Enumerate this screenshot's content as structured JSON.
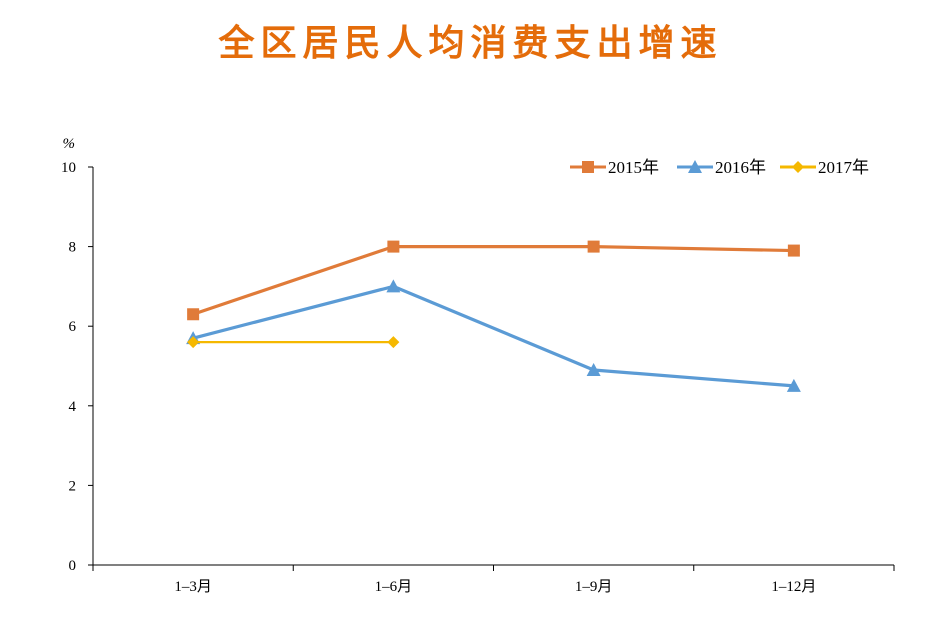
{
  "chart_data": {
    "type": "line",
    "title": "全区居民人均消费支出增速",
    "ylabel": "%",
    "xlabel": "",
    "categories": [
      "1–3月",
      "1–6月",
      "1–9月",
      "1–12月"
    ],
    "ylim": [
      0,
      10
    ],
    "yticks": [
      0,
      2,
      4,
      6,
      8,
      10
    ],
    "grid": false,
    "legend_position": "top-right",
    "series": [
      {
        "name": "2015年",
        "color": "#E07B39",
        "marker": "square",
        "values": [
          6.3,
          8.0,
          8.0,
          7.9
        ]
      },
      {
        "name": "2016年",
        "color": "#5B9BD5",
        "marker": "triangle",
        "values": [
          5.7,
          7.0,
          4.9,
          4.5
        ]
      },
      {
        "name": "2017年",
        "color": "#F5B800",
        "marker": "diamond",
        "values": [
          5.6,
          5.6,
          null,
          null
        ]
      }
    ]
  }
}
